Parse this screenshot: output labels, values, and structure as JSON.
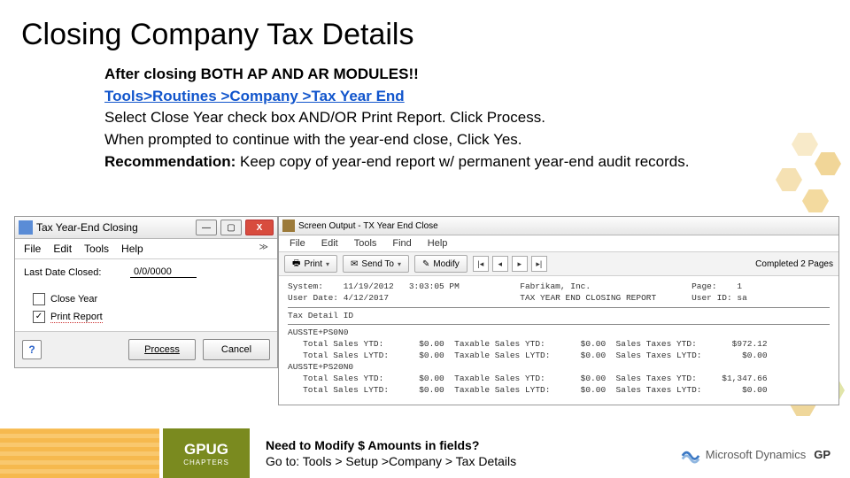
{
  "title": "Closing Company Tax Details",
  "body": {
    "line1": "After closing BOTH AP AND AR MODULES!!",
    "line2": "Tools>Routines >Company >Tax Year End",
    "line3": "Select Close Year check box AND/OR Print Report. Click Process.",
    "line4": "When prompted to continue with the year-end close, Click Yes.",
    "rec_label": "Recommendation:",
    "rec_text": " Keep copy of year-end report w/ permanent year-end audit records."
  },
  "win1": {
    "title": "Tax Year-End Closing",
    "menu": {
      "file": "File",
      "edit": "Edit",
      "tools": "Tools",
      "help": "Help"
    },
    "last_date_label": "Last Date Closed:",
    "last_date_value": "0/0/0000",
    "close_year_label": "Close Year",
    "close_year_checked": false,
    "print_report_label": "Print Report",
    "print_report_checked": true,
    "process_label": "Process",
    "cancel_label": "Cancel"
  },
  "win2": {
    "title": "Screen Output - TX Year End Close",
    "menu": {
      "file": "File",
      "edit": "Edit",
      "tools": "Tools",
      "find": "Find",
      "help": "Help"
    },
    "toolbar": {
      "print": "Print",
      "send": "Send To",
      "modify": "Modify",
      "completed": "Completed 2 Pages"
    },
    "report": {
      "hdr_left1": "System:    11/19/2012   3:03:05 PM",
      "hdr_left2": "User Date: 4/12/2017",
      "hdr_mid1": "Fabrikam, Inc.",
      "hdr_mid2": "TAX YEAR END CLOSING REPORT",
      "hdr_right1": "Page:    1",
      "hdr_right2": "User ID: sa",
      "section": "Tax Detail ID",
      "groups": [
        {
          "name": "AUSSTE+PS0N0",
          "rows": [
            {
              "a": "Total Sales YTD:",
              "av": "$0.00",
              "b": "Taxable Sales YTD:",
              "bv": "$0.00",
              "c": "Sales Taxes YTD:",
              "cv": "$972.12"
            },
            {
              "a": "Total Sales LYTD:",
              "av": "$0.00",
              "b": "Taxable Sales LYTD:",
              "bv": "$0.00",
              "c": "Sales Taxes LYTD:",
              "cv": "$0.00"
            }
          ]
        },
        {
          "name": "AUSSTE+PS20N0",
          "rows": [
            {
              "a": "Total Sales YTD:",
              "av": "$0.00",
              "b": "Taxable Sales YTD:",
              "bv": "$0.00",
              "c": "Sales Taxes YTD:",
              "cv": "$1,347.66"
            },
            {
              "a": "Total Sales LYTD:",
              "av": "$0.00",
              "b": "Taxable Sales LYTD:",
              "bv": "$0.00",
              "c": "Sales Taxes LYTD:",
              "cv": "$0.00"
            }
          ]
        }
      ]
    }
  },
  "footer": {
    "gpug": "GPUG",
    "gpug_sub": "CHAPTERS",
    "note_q": "Need to Modify $ Amounts in fields?",
    "note_path": "Go to: Tools > Setup >Company > Tax Details",
    "ms": "Microsoft Dynamics",
    "gp": "GP"
  },
  "colors": {
    "accent_green": "#7a8a1f",
    "accent_gold": "#f6b94e",
    "link": "#1155cc",
    "close_red": "#d84c3e"
  }
}
